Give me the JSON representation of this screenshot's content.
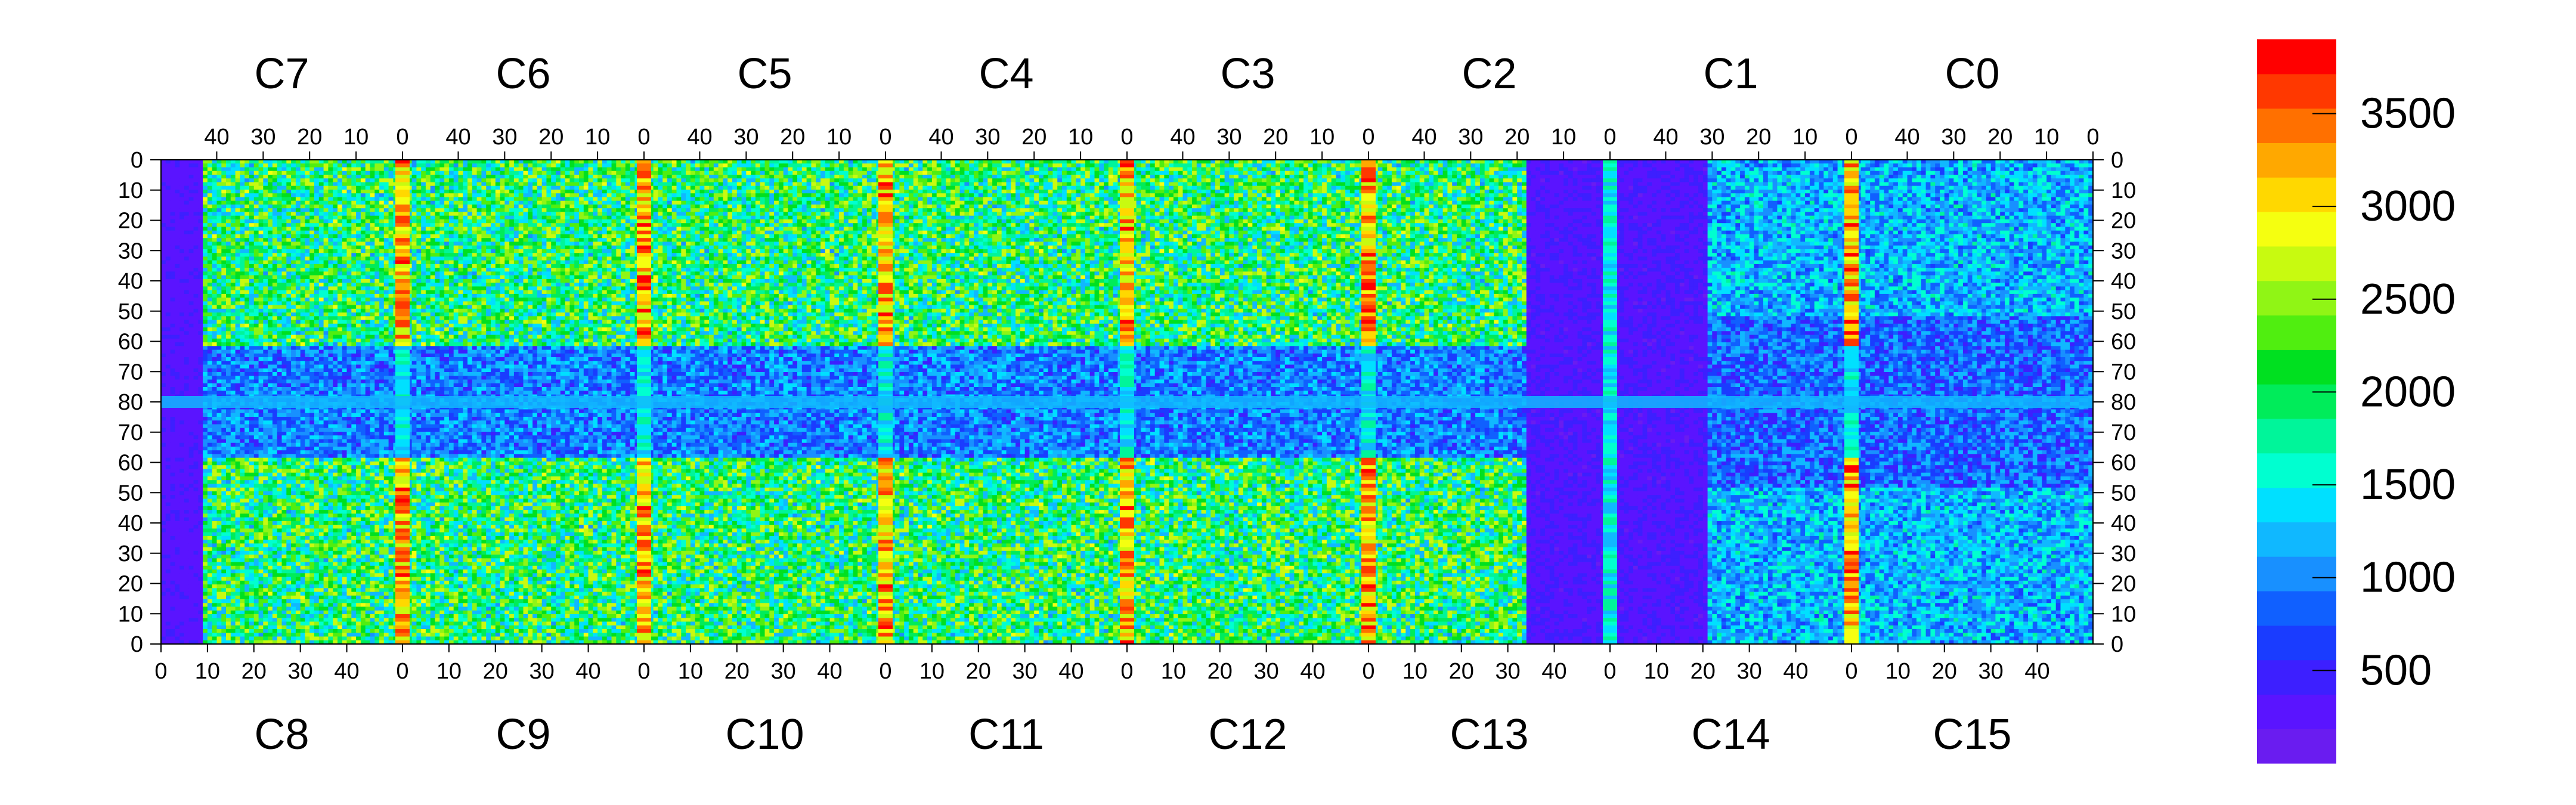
{
  "chart_data": {
    "type": "heatmap",
    "top_chips": [
      "C7",
      "C6",
      "C5",
      "C4",
      "C3",
      "C2",
      "C1",
      "C0"
    ],
    "bottom_chips": [
      "C8",
      "C9",
      "C10",
      "C11",
      "C12",
      "C13",
      "C14",
      "C15"
    ],
    "top_x_ticks": [
      "40",
      "30",
      "20",
      "10",
      "0"
    ],
    "top_x_tick_values": [
      40,
      30,
      20,
      10,
      0
    ],
    "bottom_x_ticks": [
      "0",
      "10",
      "20",
      "30",
      "40"
    ],
    "bottom_x_tick_values": [
      0,
      10,
      20,
      30,
      40
    ],
    "chip_x_range": [
      0,
      52
    ],
    "y_ticks": [
      "0",
      "10",
      "20",
      "30",
      "40",
      "50",
      "60",
      "70",
      "80",
      "70",
      "60",
      "50",
      "40",
      "30",
      "20",
      "10",
      "0"
    ],
    "colorbar": {
      "min": 0,
      "max": 3900,
      "ticks": [
        500,
        1000,
        1500,
        2000,
        2500,
        3000,
        3500
      ],
      "tick_labels": [
        "500",
        "1000",
        "1500",
        "2000",
        "2500",
        "3000",
        "3500"
      ],
      "colors": [
        "#6a1cf0",
        "#5a14ff",
        "#3d1fff",
        "#1a3cff",
        "#1060ff",
        "#1890ff",
        "#10b8ff",
        "#00e0ff",
        "#00ffd0",
        "#00f59a",
        "#00ec5a",
        "#00e020",
        "#50ee10",
        "#90f515",
        "#c8fa10",
        "#f5ff10",
        "#ffd800",
        "#ffa800",
        "#ff7000",
        "#ff3800",
        "#ff0000"
      ]
    },
    "xlabel": "",
    "ylabel": "",
    "title": ""
  }
}
